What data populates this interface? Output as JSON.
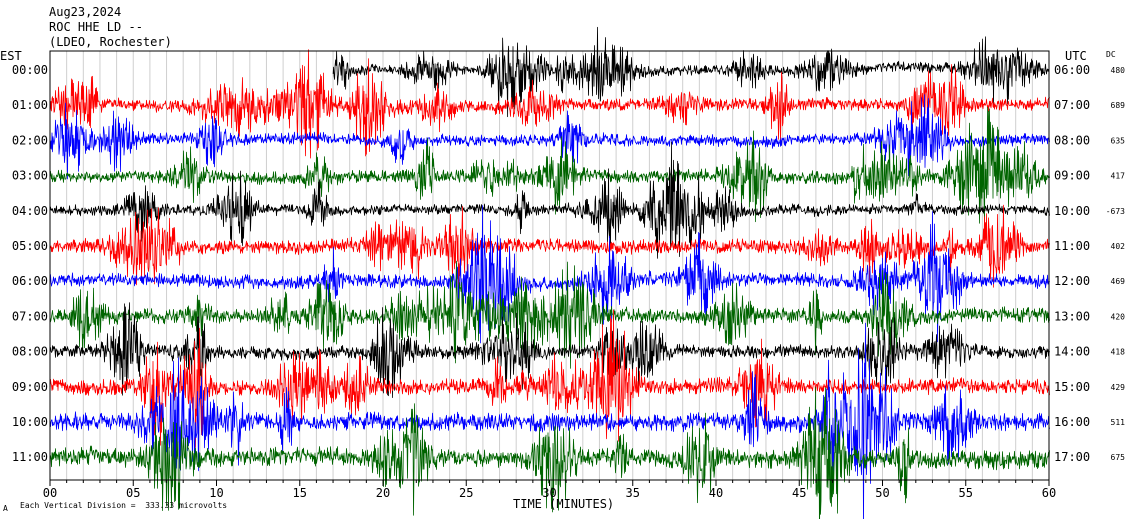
{
  "header": {
    "date": "Aug23,2024",
    "station": "ROC HHE LD --",
    "network": "(LDEO, Rochester)"
  },
  "left_axis_label": "EST",
  "right_axis_label": "UTC",
  "dc_label": "DC",
  "footer": {
    "scale_note": "Each Vertical Division =  333.33 microvolts",
    "corner_mark": "A"
  },
  "colors": {
    "black": "#000000",
    "red": "#ff0000",
    "blue": "#0000ff",
    "green": "#006400"
  },
  "chart_data": {
    "type": "line",
    "title": "",
    "xlabel": "TIME (MINUTES)",
    "ylabel": "",
    "xlim": [
      0,
      60
    ],
    "x_ticks": [
      0,
      5,
      10,
      15,
      20,
      25,
      30,
      35,
      40,
      45,
      50,
      55,
      60
    ],
    "x_tick_labels": [
      "00",
      "05",
      "10",
      "15",
      "20",
      "25",
      "30",
      "35",
      "40",
      "45",
      "50",
      "55",
      "60"
    ],
    "grid": true,
    "rows": [
      {
        "est": "00:00",
        "utc": "06:00",
        "dc": "480",
        "color": "black",
        "start_minute": 17,
        "amplitude": 0.5
      },
      {
        "est": "01:00",
        "utc": "07:00",
        "dc": "689",
        "color": "red",
        "start_minute": 0,
        "amplitude": 0.6
      },
      {
        "est": "02:00",
        "utc": "08:00",
        "dc": "635",
        "color": "blue",
        "start_minute": 0,
        "amplitude": 0.55
      },
      {
        "est": "03:00",
        "utc": "09:00",
        "dc": "417",
        "color": "green",
        "start_minute": 0,
        "amplitude": 0.6
      },
      {
        "est": "04:00",
        "utc": "10:00",
        "dc": "-673",
        "color": "black",
        "start_minute": 0,
        "amplitude": 0.5
      },
      {
        "est": "05:00",
        "utc": "11:00",
        "dc": "402",
        "color": "red",
        "start_minute": 0,
        "amplitude": 0.65
      },
      {
        "est": "06:00",
        "utc": "12:00",
        "dc": "469",
        "color": "blue",
        "start_minute": 0,
        "amplitude": 0.65
      },
      {
        "est": "07:00",
        "utc": "13:00",
        "dc": "420",
        "color": "green",
        "start_minute": 0,
        "amplitude": 0.7
      },
      {
        "est": "08:00",
        "utc": "14:00",
        "dc": "418",
        "color": "black",
        "start_minute": 0,
        "amplitude": 0.6
      },
      {
        "est": "09:00",
        "utc": "15:00",
        "dc": "429",
        "color": "red",
        "start_minute": 0,
        "amplitude": 0.75
      },
      {
        "est": "10:00",
        "utc": "16:00",
        "dc": "511",
        "color": "blue",
        "start_minute": 0,
        "amplitude": 0.85
      },
      {
        "est": "11:00",
        "utc": "17:00",
        "dc": "675",
        "color": "green",
        "start_minute": 0,
        "amplitude": 0.9
      }
    ]
  }
}
